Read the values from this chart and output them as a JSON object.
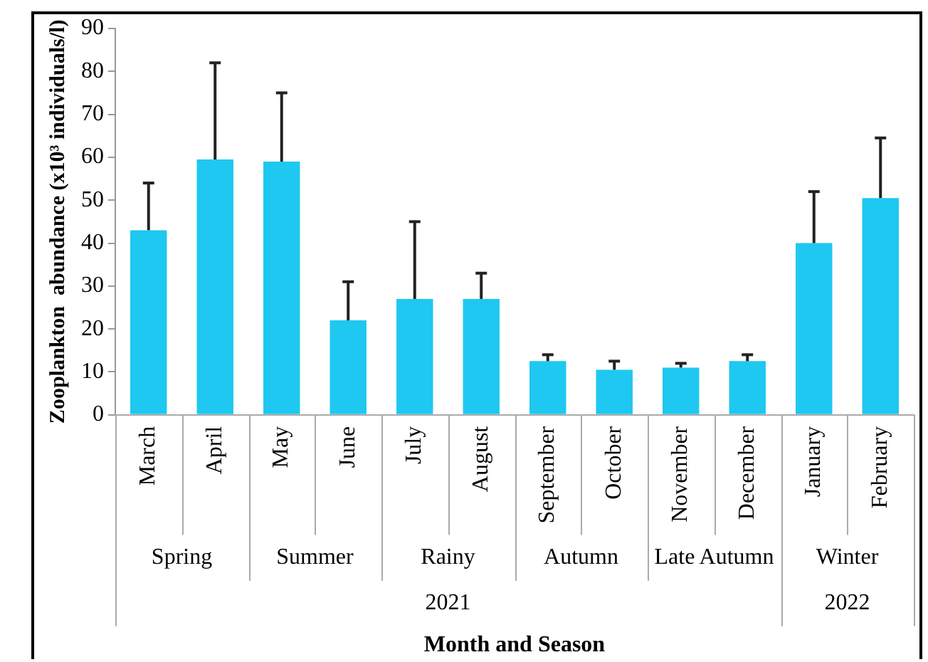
{
  "chart_data": {
    "type": "bar",
    "xlabel": "Month and Season",
    "ylabel": "Zooplankton  abundance (x10³ individuals/l)",
    "categories": [
      "March",
      "April",
      "May",
      "June",
      "July",
      "August",
      "September",
      "October",
      "November",
      "December",
      "January",
      "February"
    ],
    "values": [
      43,
      59.5,
      59,
      22,
      27,
      27,
      12.5,
      10.5,
      11,
      12.5,
      40,
      50.5
    ],
    "errors": [
      [
        43,
        54
      ],
      [
        59.5,
        82
      ],
      [
        59,
        75
      ],
      [
        22,
        31
      ],
      [
        27,
        45
      ],
      [
        27,
        33
      ],
      [
        12.5,
        14
      ],
      [
        10.5,
        12.5
      ],
      [
        11,
        12
      ],
      [
        12.5,
        14
      ],
      [
        40,
        52
      ],
      [
        50.5,
        64.5
      ]
    ],
    "color": "#1ec8f0",
    "ylim": [
      0,
      90
    ],
    "yticks": [
      0,
      10,
      20,
      30,
      40,
      50,
      60,
      70,
      80,
      90
    ],
    "grid": false,
    "legend": false,
    "annotations": [
      "Spring",
      "Summer",
      "Rainy",
      "Autumn",
      "Late Autumn",
      "Winter",
      "2021",
      "2022"
    ]
  }
}
